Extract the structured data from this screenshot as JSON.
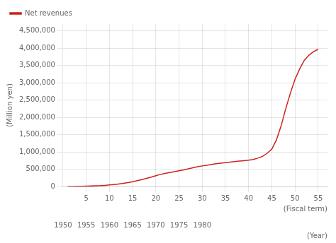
{
  "chart_data": {
    "type": "line",
    "x": [
      1,
      2,
      3,
      4,
      5,
      6,
      7,
      8,
      9,
      10,
      11,
      12,
      13,
      14,
      15,
      16,
      17,
      18,
      19,
      20,
      21,
      22,
      23,
      24,
      25,
      26,
      27,
      28,
      29,
      30,
      31,
      32,
      33,
      34,
      35,
      36,
      37,
      38,
      39,
      40,
      41,
      42,
      43,
      44,
      45,
      46,
      47,
      48,
      49,
      50,
      51,
      52,
      53,
      54,
      55
    ],
    "series": [
      {
        "name": "Net revenues",
        "color": "#cc2222",
        "values": [
          1500,
          2500,
          4000,
          6000,
          9000,
          13000,
          18000,
          24000,
          33000,
          44000,
          57000,
          72000,
          90000,
          112000,
          138000,
          168000,
          200000,
          235000,
          272000,
          310000,
          350000,
          380000,
          405000,
          430000,
          455000,
          480000,
          510000,
          540000,
          570000,
          595000,
          615000,
          638000,
          660000,
          675000,
          690000,
          705000,
          720000,
          735000,
          748000,
          760000,
          780000,
          820000,
          870000,
          960000,
          1080000,
          1350000,
          1750000,
          2250000,
          2700000,
          3100000,
          3400000,
          3650000,
          3800000,
          3900000,
          3970000
        ]
      }
    ],
    "xlim": [
      0,
      57
    ],
    "xticks": [
      5,
      10,
      15,
      20,
      25,
      30,
      35,
      40,
      45,
      50,
      55
    ],
    "xlabel": "(Fiscal term)",
    "x2lim": [
      0,
      57
    ],
    "x2ticks": [
      {
        "value": 0,
        "label": "1950"
      },
      {
        "value": 5,
        "label": "1955"
      },
      {
        "value": 10,
        "label": "1960"
      },
      {
        "value": 15,
        "label": "1965"
      },
      {
        "value": 20,
        "label": "1970"
      },
      {
        "value": 25,
        "label": "1975"
      },
      {
        "value": 30,
        "label": "1980"
      }
    ],
    "x2label": "(Year)",
    "ylabel": "(Million yen)",
    "ylim": [
      0,
      4700000
    ],
    "yticks": [
      0,
      {
        "value": 500000,
        "label": "500,000"
      },
      {
        "value": 1000000,
        "label": "1,000,000"
      },
      {
        "value": 1500000,
        "label": "1,500,000"
      },
      {
        "value": 2000000,
        "label": "2,000,000"
      },
      {
        "value": 2500000,
        "label": "2,500,000"
      },
      {
        "value": 3000000,
        "label": "3,000,000"
      },
      {
        "value": 3500000,
        "label": "3,500,000"
      },
      {
        "value": 4000000,
        "label": "4,000,000"
      },
      {
        "value": 4500000,
        "label": "4,500,000"
      }
    ],
    "grid": true,
    "legend": "upper left"
  }
}
